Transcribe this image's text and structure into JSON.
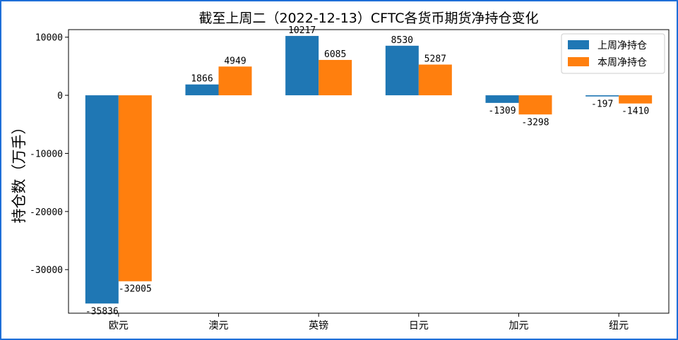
{
  "chart_data": {
    "type": "bar",
    "title": "截至上周二（2022-12-13）CFTC各货币期货净持仓变化",
    "xlabel": "",
    "ylabel": "持仓数（万手）",
    "categories": [
      "欧元",
      "澳元",
      "英镑",
      "日元",
      "加元",
      "纽元"
    ],
    "series": [
      {
        "name": "上周净持仓",
        "color": "#1f77b4",
        "values": [
          -35836,
          1866,
          10217,
          8530,
          -1309,
          -197
        ]
      },
      {
        "name": "本周净持仓",
        "color": "#ff7f0e",
        "values": [
          -32005,
          4949,
          6085,
          5287,
          -3298,
          -1410
        ]
      }
    ],
    "yticks": [
      10000,
      0,
      -10000,
      -20000,
      -30000
    ],
    "ylim": [
      -37500,
      11300
    ],
    "legend_position": "top-right",
    "grid": false
  }
}
